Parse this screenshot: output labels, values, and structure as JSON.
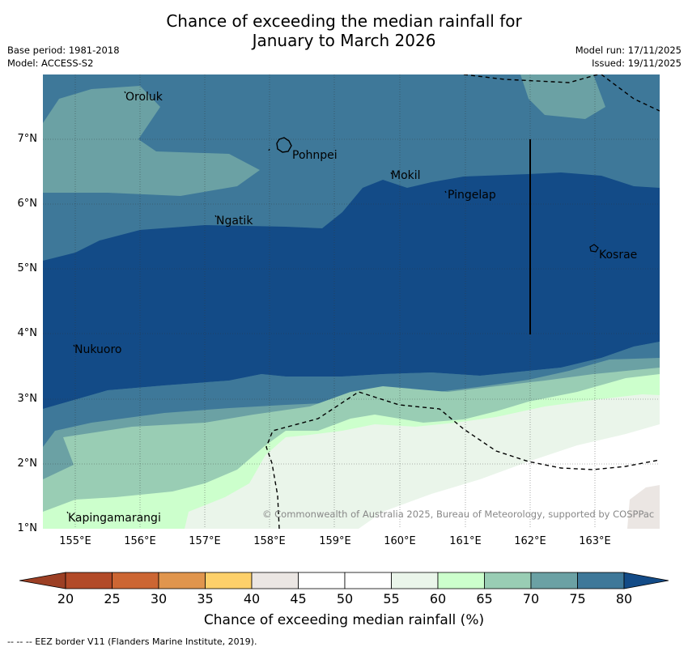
{
  "title": {
    "line1": "Chance of exceeding the median rainfall for",
    "line2": "January to March 2026"
  },
  "meta": {
    "base_period": "Base period: 1981-2018",
    "model": "Model: ACCESS-S2",
    "model_run": "Model run: 17/11/2025",
    "issued": "Issued: 19/11/2025"
  },
  "map": {
    "latitudes": [
      "7°N",
      "6°N",
      "5°N",
      "4°N",
      "3°N",
      "2°N",
      "1°N"
    ],
    "longitudes": [
      "155°E",
      "156°E",
      "157°E",
      "158°E",
      "159°E",
      "160°E",
      "161°E",
      "162°E",
      "163°E"
    ],
    "places": {
      "oroluk": "Oroluk",
      "pohnpei": "Pohnpei",
      "mokil": "Mokil",
      "pingelap": "Pingelap",
      "ngatik": "Ngatik",
      "kosrae": "Kosrae",
      "nukuoro": "Nukuoro",
      "kapingamarangi": "Kapingamarangi"
    },
    "copyright": "© Commonwealth of Australia 2025, Bureau of Meteorology, supported by COSPPac"
  },
  "colorbar": {
    "title": "Chance of exceeding median rainfall (%)",
    "ticks": [
      "20",
      "25",
      "30",
      "35",
      "40",
      "45",
      "50",
      "55",
      "60",
      "65",
      "70",
      "75",
      "80"
    ],
    "colors": [
      "#b24a28",
      "#cc6633",
      "#e0954d",
      "#fdd06a",
      "#ebe6e3",
      "#ffffff",
      "#ffffff",
      "#eaf5ea",
      "#ccffcc",
      "#99cdb4",
      "#6ba1a4",
      "#3e7899",
      "#134b87"
    ],
    "under_color": "#9c3f24",
    "over_color": "#134b87"
  },
  "footnote": "--  --  -- EEZ border V11 (Flanders Marine Institute, 2019)."
}
